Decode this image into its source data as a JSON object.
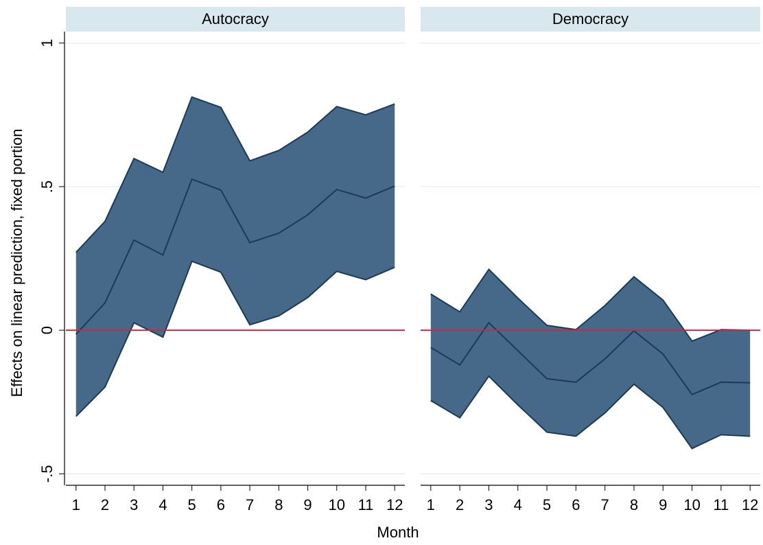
{
  "chart_data": {
    "type": "band",
    "ylabel": "Effects on linear prediction, fixed portion",
    "xlabel": "Month",
    "ylim": [
      -0.54,
      1.04
    ],
    "yticks": [
      {
        "value": -0.5,
        "label": "-.5"
      },
      0,
      {
        "value": 0.5,
        "label": ".5"
      },
      1
    ],
    "xlim": [
      0.65,
      12.35
    ],
    "grid": true,
    "reference_line": {
      "value": 0,
      "color": "#c8284f"
    },
    "band_color": "#46698a",
    "line_color": "#1b3a55",
    "strip_color": "#d9e7ef",
    "panels": [
      {
        "title": "Autocracy",
        "x": [
          1,
          2,
          3,
          4,
          5,
          6,
          7,
          8,
          9,
          10,
          11,
          12
        ],
        "xticks": [
          1,
          2,
          3,
          4,
          5,
          6,
          7,
          8,
          9,
          10,
          11,
          12
        ],
        "mean": [
          -0.014,
          0.095,
          0.314,
          0.262,
          0.526,
          0.488,
          0.305,
          0.338,
          0.402,
          0.49,
          0.46,
          0.502
        ],
        "upper": [
          0.271,
          0.379,
          0.598,
          0.55,
          0.812,
          0.776,
          0.59,
          0.626,
          0.69,
          0.779,
          0.75,
          0.788
        ],
        "lower": [
          -0.3,
          -0.198,
          0.026,
          -0.024,
          0.24,
          0.202,
          0.019,
          0.05,
          0.114,
          0.205,
          0.176,
          0.219
        ]
      },
      {
        "title": "Democracy",
        "x": [
          1,
          2,
          3,
          4,
          5,
          6,
          7,
          8,
          9,
          10,
          11,
          12
        ],
        "xticks": [
          1,
          2,
          3,
          4,
          5,
          6,
          7,
          8,
          9,
          10,
          11,
          12
        ],
        "mean": [
          -0.06,
          -0.121,
          0.026,
          -0.071,
          -0.169,
          -0.181,
          -0.1,
          -0.002,
          -0.083,
          -0.224,
          -0.181,
          -0.183
        ],
        "upper": [
          0.126,
          0.064,
          0.212,
          0.112,
          0.017,
          0.002,
          0.086,
          0.186,
          0.105,
          -0.038,
          0.002,
          0
        ],
        "lower": [
          -0.245,
          -0.305,
          -0.16,
          -0.26,
          -0.355,
          -0.369,
          -0.288,
          -0.188,
          -0.269,
          -0.412,
          -0.364,
          -0.369
        ]
      }
    ]
  }
}
